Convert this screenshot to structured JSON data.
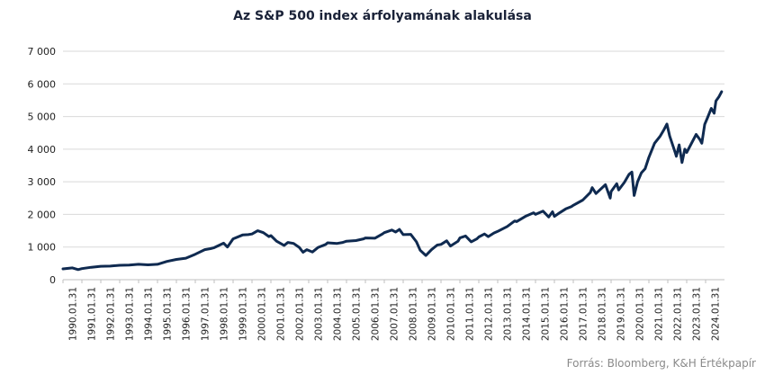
{
  "chart_data": {
    "type": "line",
    "title": "Az S&P 500 index árfolyamának alakulása",
    "xlabel": "",
    "ylabel": "",
    "ylim": [
      0,
      7000
    ],
    "y_ticks": [
      0,
      1000,
      2000,
      3000,
      4000,
      5000,
      6000,
      7000
    ],
    "y_tick_labels": [
      "0",
      "1 000",
      "2 000",
      "3 000",
      "4 000",
      "5 000",
      "6 000",
      "7 000"
    ],
    "x_tick_labels": [
      "1990.01.31",
      "1991.01.31",
      "1992.01.31",
      "1993.01.31",
      "1994.01.31",
      "1995.01.31",
      "1996.01.31",
      "1997.01.31",
      "1998.01.31",
      "1999.01.31",
      "2000.01.31",
      "2001.01.31",
      "2002.01.31",
      "2003.01.31",
      "2004.01.31",
      "2005.01.31",
      "2006.01.31",
      "2007.01.31",
      "2008.01.31",
      "2009.01.31",
      "2010.01.31",
      "2011.01.31",
      "2012.01.31",
      "2013.01.31",
      "2014.01.31",
      "2015.01.31",
      "2016.01.31",
      "2017.01.31",
      "2018.01.31",
      "2019.01.31",
      "2020.01.31",
      "2021.01.31",
      "2022.01.31",
      "2023.01.31",
      "2024.01.31"
    ],
    "grid": true,
    "series": [
      {
        "color": "#0f2a50",
        "points": [
          [
            1990.0,
            330
          ],
          [
            1990.5,
            360
          ],
          [
            1990.8,
            310
          ],
          [
            1991.0,
            340
          ],
          [
            1991.5,
            380
          ],
          [
            1992.0,
            410
          ],
          [
            1992.5,
            415
          ],
          [
            1993.0,
            440
          ],
          [
            1993.5,
            450
          ],
          [
            1994.0,
            470
          ],
          [
            1994.5,
            455
          ],
          [
            1995.0,
            470
          ],
          [
            1995.5,
            560
          ],
          [
            1996.0,
            620
          ],
          [
            1996.5,
            660
          ],
          [
            1997.0,
            780
          ],
          [
            1997.5,
            920
          ],
          [
            1997.8,
            950
          ],
          [
            1998.0,
            980
          ],
          [
            1998.5,
            1120
          ],
          [
            1998.7,
            1000
          ],
          [
            1999.0,
            1250
          ],
          [
            1999.5,
            1370
          ],
          [
            1999.8,
            1380
          ],
          [
            2000.0,
            1400
          ],
          [
            2000.3,
            1500
          ],
          [
            2000.6,
            1440
          ],
          [
            2000.9,
            1320
          ],
          [
            2001.0,
            1350
          ],
          [
            2001.3,
            1180
          ],
          [
            2001.7,
            1050
          ],
          [
            2001.9,
            1140
          ],
          [
            2002.2,
            1110
          ],
          [
            2002.5,
            990
          ],
          [
            2002.7,
            840
          ],
          [
            2002.9,
            920
          ],
          [
            2003.2,
            850
          ],
          [
            2003.5,
            990
          ],
          [
            2003.9,
            1080
          ],
          [
            2004.0,
            1130
          ],
          [
            2004.5,
            1110
          ],
          [
            2004.8,
            1140
          ],
          [
            2005.0,
            1180
          ],
          [
            2005.5,
            1200
          ],
          [
            2005.9,
            1250
          ],
          [
            2006.0,
            1280
          ],
          [
            2006.5,
            1270
          ],
          [
            2006.9,
            1400
          ],
          [
            2007.0,
            1440
          ],
          [
            2007.4,
            1520
          ],
          [
            2007.6,
            1460
          ],
          [
            2007.8,
            1540
          ],
          [
            2008.0,
            1380
          ],
          [
            2008.4,
            1390
          ],
          [
            2008.7,
            1160
          ],
          [
            2008.9,
            900
          ],
          [
            2009.2,
            740
          ],
          [
            2009.5,
            920
          ],
          [
            2009.8,
            1060
          ],
          [
            2010.0,
            1080
          ],
          [
            2010.3,
            1190
          ],
          [
            2010.5,
            1030
          ],
          [
            2010.9,
            1180
          ],
          [
            2011.0,
            1280
          ],
          [
            2011.3,
            1340
          ],
          [
            2011.6,
            1160
          ],
          [
            2011.9,
            1250
          ],
          [
            2012.0,
            1310
          ],
          [
            2012.3,
            1400
          ],
          [
            2012.5,
            1320
          ],
          [
            2012.8,
            1430
          ],
          [
            2013.0,
            1480
          ],
          [
            2013.5,
            1630
          ],
          [
            2013.9,
            1800
          ],
          [
            2014.0,
            1780
          ],
          [
            2014.5,
            1950
          ],
          [
            2014.9,
            2050
          ],
          [
            2015.0,
            2000
          ],
          [
            2015.4,
            2100
          ],
          [
            2015.7,
            1920
          ],
          [
            2015.9,
            2080
          ],
          [
            2016.0,
            1940
          ],
          [
            2016.3,
            2060
          ],
          [
            2016.6,
            2170
          ],
          [
            2016.9,
            2240
          ],
          [
            2017.0,
            2280
          ],
          [
            2017.5,
            2440
          ],
          [
            2017.9,
            2670
          ],
          [
            2018.0,
            2820
          ],
          [
            2018.2,
            2640
          ],
          [
            2018.7,
            2910
          ],
          [
            2018.95,
            2500
          ],
          [
            2019.0,
            2700
          ],
          [
            2019.3,
            2940
          ],
          [
            2019.4,
            2750
          ],
          [
            2019.7,
            2980
          ],
          [
            2019.95,
            3230
          ],
          [
            2020.1,
            3300
          ],
          [
            2020.22,
            2580
          ],
          [
            2020.4,
            3000
          ],
          [
            2020.6,
            3270
          ],
          [
            2020.8,
            3400
          ],
          [
            2021.0,
            3750
          ],
          [
            2021.3,
            4180
          ],
          [
            2021.6,
            4400
          ],
          [
            2021.8,
            4600
          ],
          [
            2021.95,
            4770
          ],
          [
            2022.1,
            4400
          ],
          [
            2022.4,
            3880
          ],
          [
            2022.45,
            3780
          ],
          [
            2022.6,
            4130
          ],
          [
            2022.75,
            3590
          ],
          [
            2022.9,
            4000
          ],
          [
            2023.0,
            3900
          ],
          [
            2023.2,
            4120
          ],
          [
            2023.5,
            4450
          ],
          [
            2023.7,
            4290
          ],
          [
            2023.8,
            4180
          ],
          [
            2023.95,
            4760
          ],
          [
            2024.1,
            4960
          ],
          [
            2024.3,
            5250
          ],
          [
            2024.45,
            5100
          ],
          [
            2024.55,
            5480
          ],
          [
            2024.7,
            5600
          ],
          [
            2024.85,
            5760
          ]
        ]
      }
    ]
  },
  "source_note": "Forrás: Bloomberg,  K&H Értékpapír"
}
